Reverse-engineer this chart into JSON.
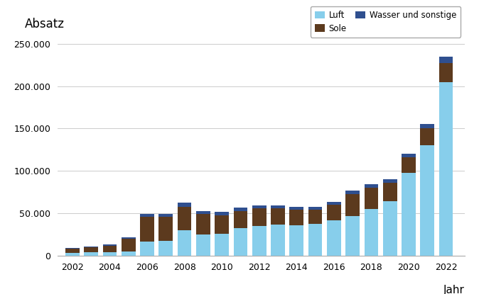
{
  "years": [
    2002,
    2003,
    2004,
    2005,
    2006,
    2007,
    2008,
    2009,
    2010,
    2011,
    2012,
    2013,
    2014,
    2015,
    2016,
    2017,
    2018,
    2019,
    2020,
    2021,
    2022
  ],
  "luft": [
    3000,
    4000,
    4000,
    5000,
    17000,
    18000,
    30000,
    25000,
    26000,
    33000,
    35000,
    37000,
    36000,
    38000,
    42000,
    47000,
    55000,
    64000,
    98000,
    130000,
    205000
  ],
  "sole": [
    5000,
    6000,
    8000,
    15000,
    29000,
    28000,
    28000,
    24000,
    22000,
    20000,
    21000,
    19000,
    18000,
    16000,
    18000,
    26000,
    25000,
    22000,
    18000,
    20000,
    22000
  ],
  "wasser": [
    1000,
    1000,
    1500,
    2000,
    3000,
    3500,
    4500,
    4000,
    4000,
    4000,
    3500,
    3500,
    3500,
    3500,
    3500,
    4000,
    4500,
    4500,
    4500,
    5000,
    8000
  ],
  "color_luft": "#87CEEB",
  "color_sole": "#5C3A1E",
  "color_wasser": "#2F4F8F",
  "absatz_label": "Absatz",
  "xlabel": "Jahr",
  "legend_luft": "Luft",
  "legend_sole": "Sole",
  "legend_wasser": "Wasser und sonstige",
  "ylim": [
    0,
    260000
  ],
  "yticks": [
    0,
    50000,
    100000,
    150000,
    200000,
    250000
  ],
  "ytick_labels": [
    "0",
    "50.000",
    "100.000",
    "150.000",
    "200.000",
    "250.000"
  ],
  "background_color": "#ffffff",
  "grid_color": "#cccccc",
  "bar_width": 0.75
}
